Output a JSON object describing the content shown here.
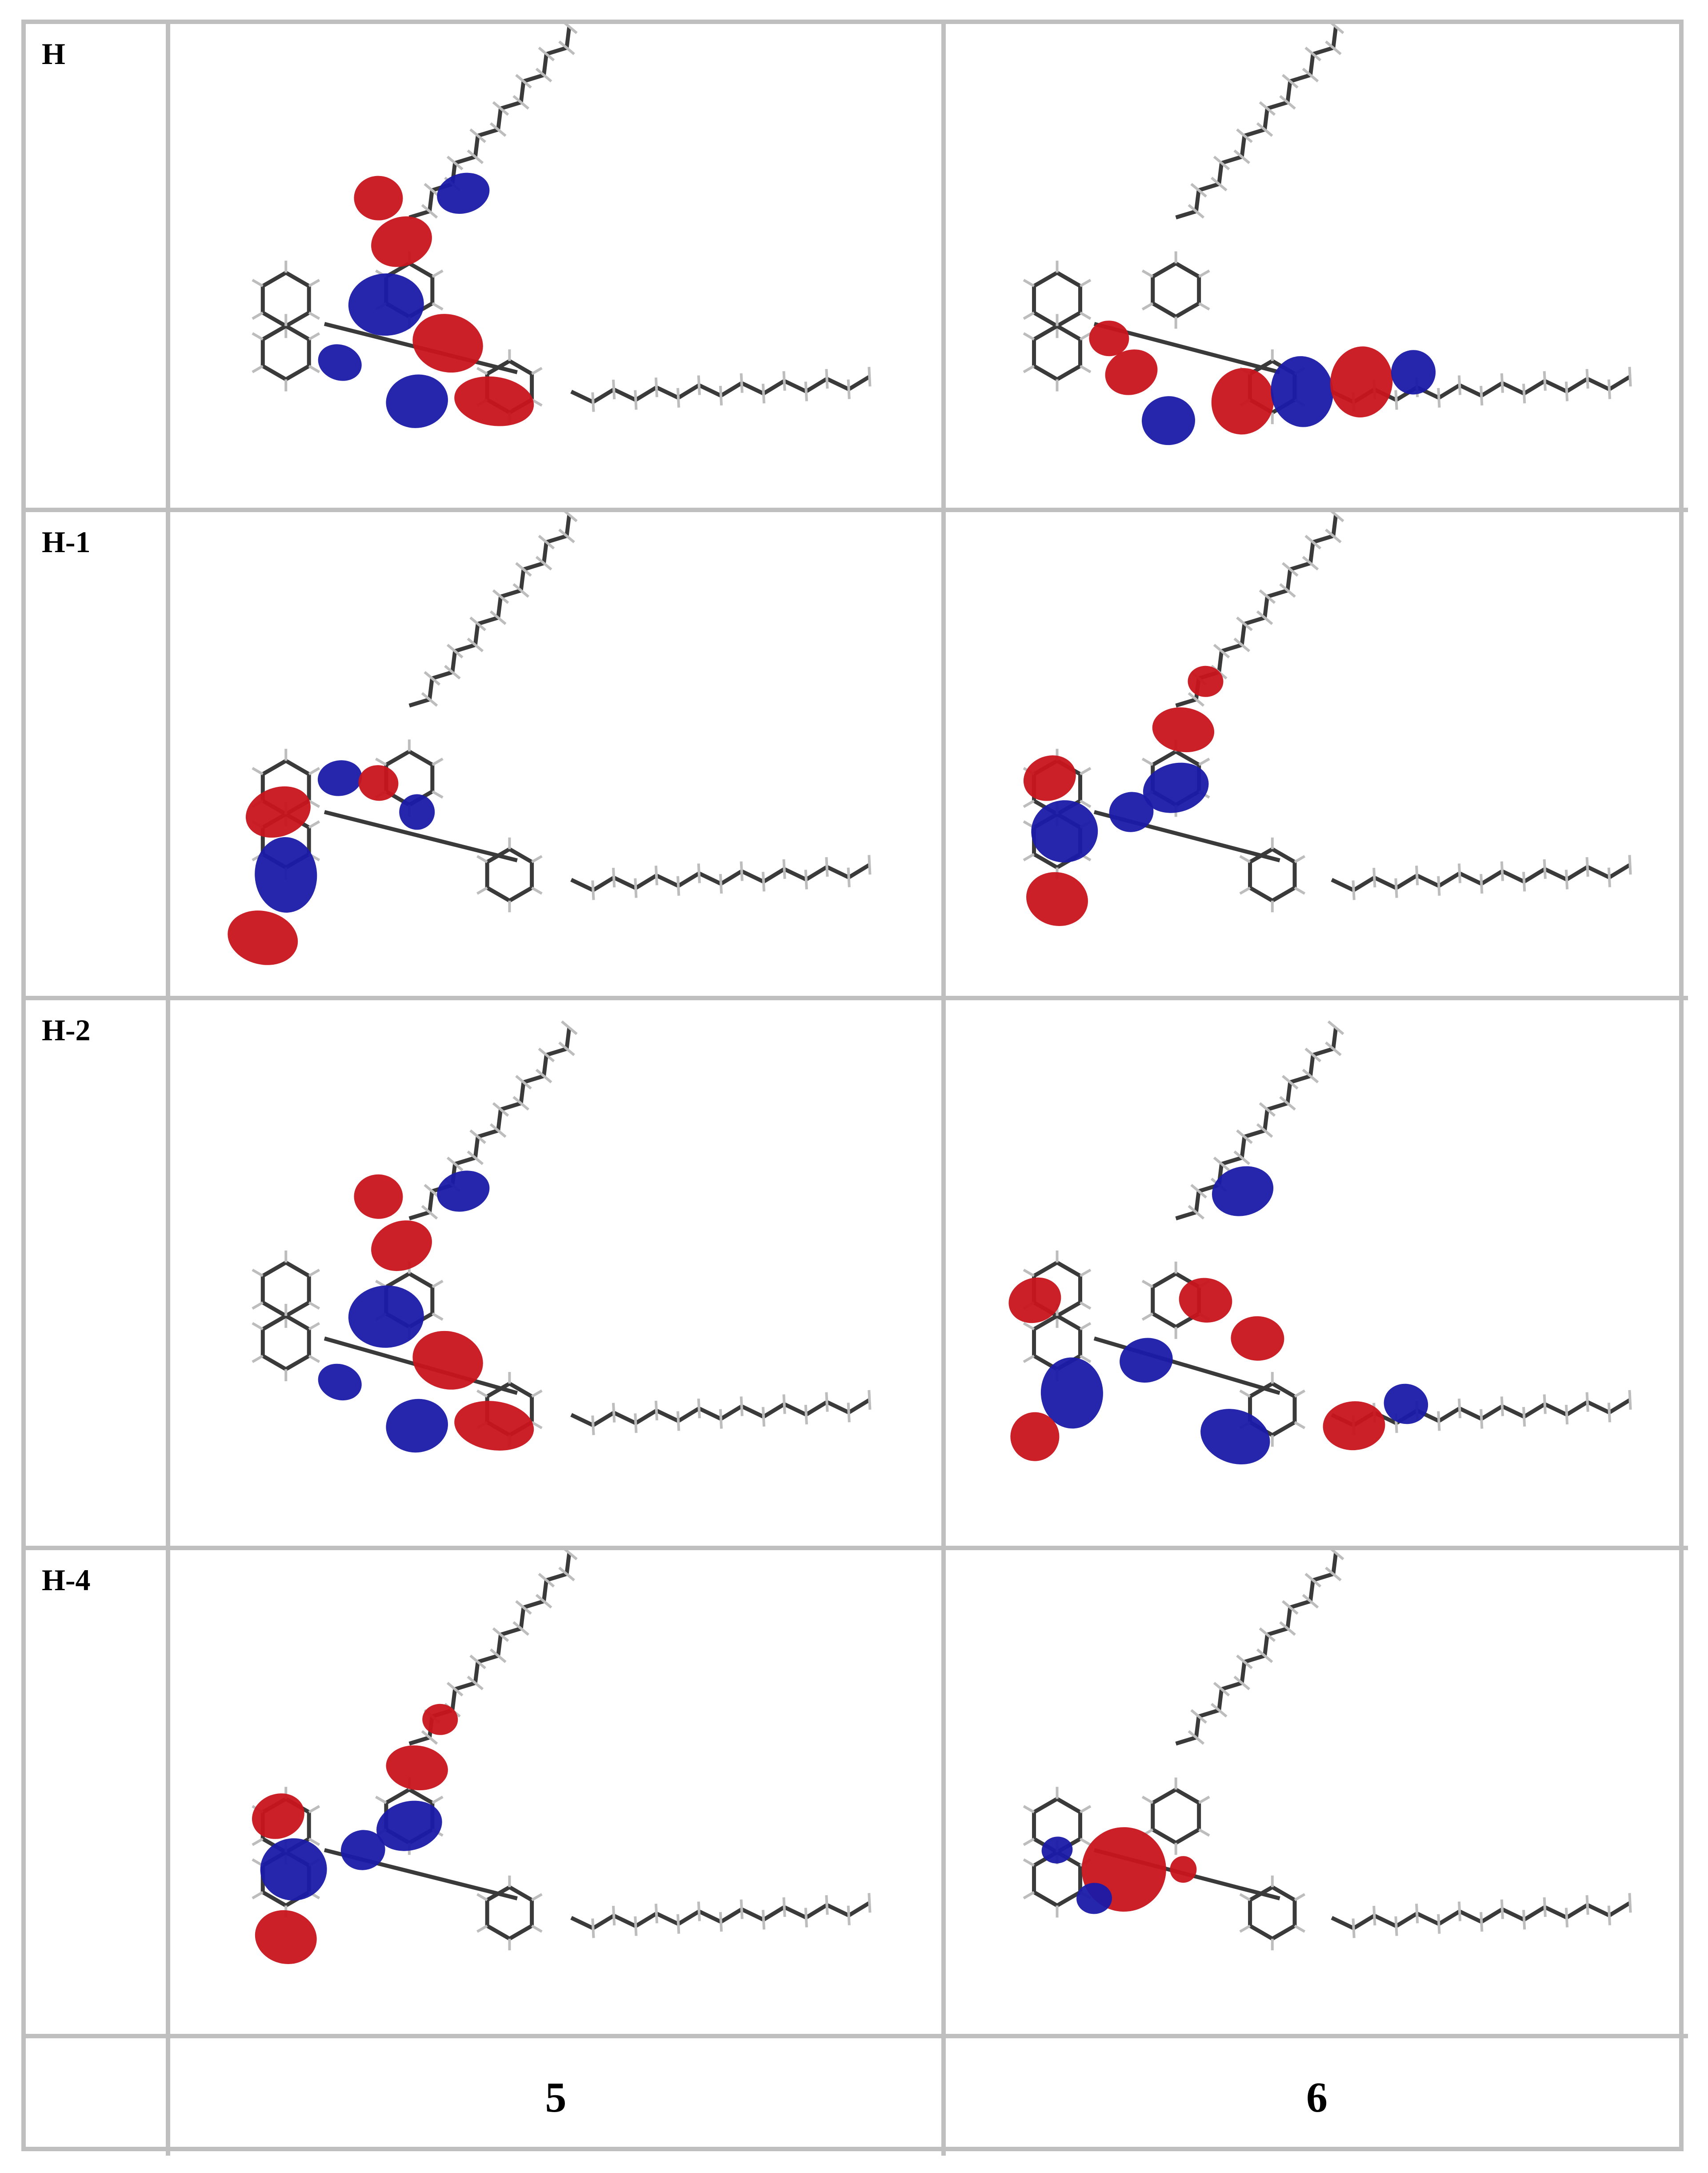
{
  "table": {
    "rows": [
      {
        "label": "H",
        "molecules": [
          {
            "name": "molecule-5-homo",
            "lobes": "center-right"
          },
          {
            "name": "molecule-6-homo",
            "lobes": "bottom-chain"
          }
        ]
      },
      {
        "label": "H-1",
        "molecules": [
          {
            "name": "molecule-5-homo-1",
            "lobes": "left-ring"
          },
          {
            "name": "molecule-6-homo-1",
            "lobes": "left-center"
          }
        ]
      },
      {
        "label": "H-2",
        "molecules": [
          {
            "name": "molecule-5-homo-2",
            "lobes": "center-right"
          },
          {
            "name": "molecule-6-homo-2",
            "lobes": "spread"
          }
        ]
      },
      {
        "label": "H-4",
        "molecules": [
          {
            "name": "molecule-5-homo-4",
            "lobes": "left-center"
          },
          {
            "name": "molecule-6-homo-4",
            "lobes": "center-single"
          }
        ]
      }
    ],
    "column_labels": [
      "5",
      "6"
    ],
    "colors": {
      "positive": "#c8141c",
      "negative": "#1a1aa8",
      "bond": "#3a3a3a",
      "hydrogen": "#bdbdbd",
      "border": "#bfbfbf"
    }
  }
}
